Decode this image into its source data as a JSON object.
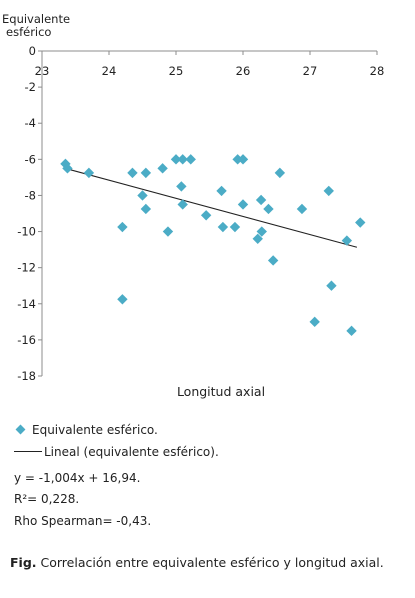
{
  "chart_data": {
    "type": "scatter",
    "ylabel_line1": "Equivalente",
    "ylabel_line2": "esférico",
    "xlabel": "Longitud axial",
    "xlim": [
      23,
      28
    ],
    "ylim": [
      -18,
      0
    ],
    "x_ticks": [
      23,
      24,
      25,
      26,
      27,
      28
    ],
    "y_ticks": [
      0,
      -2,
      -4,
      -6,
      -8,
      -10,
      -12,
      -14,
      -16,
      -18
    ],
    "x_tick_labels": [
      "23",
      "24",
      "25",
      "26",
      "27",
      "28"
    ],
    "y_tick_labels": [
      "0",
      "-2",
      "-4",
      "-6",
      "-8",
      "-10",
      "-12",
      "-14",
      "-16",
      "-18"
    ],
    "gridlines": false,
    "marker_color": "#4bacc6",
    "trendline_color": "#222222",
    "points": [
      {
        "x": 23.35,
        "y": -6.25
      },
      {
        "x": 23.38,
        "y": -6.5
      },
      {
        "x": 23.7,
        "y": -6.75
      },
      {
        "x": 24.2,
        "y": -9.75
      },
      {
        "x": 24.2,
        "y": -13.75
      },
      {
        "x": 24.35,
        "y": -6.75
      },
      {
        "x": 24.5,
        "y": -8.0
      },
      {
        "x": 24.55,
        "y": -6.75
      },
      {
        "x": 24.55,
        "y": -8.75
      },
      {
        "x": 24.8,
        "y": -6.5
      },
      {
        "x": 24.88,
        "y": -10.0
      },
      {
        "x": 25.0,
        "y": -6.0
      },
      {
        "x": 25.08,
        "y": -7.5
      },
      {
        "x": 25.1,
        "y": -6.0
      },
      {
        "x": 25.1,
        "y": -8.5
      },
      {
        "x": 25.22,
        "y": -6.0
      },
      {
        "x": 25.45,
        "y": -9.1
      },
      {
        "x": 25.68,
        "y": -7.75
      },
      {
        "x": 25.7,
        "y": -9.75
      },
      {
        "x": 25.88,
        "y": -9.75
      },
      {
        "x": 25.92,
        "y": -6.0
      },
      {
        "x": 26.0,
        "y": -6.0
      },
      {
        "x": 26.0,
        "y": -8.5
      },
      {
        "x": 26.22,
        "y": -10.4
      },
      {
        "x": 26.27,
        "y": -8.25
      },
      {
        "x": 26.28,
        "y": -10.0
      },
      {
        "x": 26.38,
        "y": -8.75
      },
      {
        "x": 26.45,
        "y": -11.6
      },
      {
        "x": 26.55,
        "y": -6.75
      },
      {
        "x": 26.88,
        "y": -8.75
      },
      {
        "x": 27.07,
        "y": -15.0
      },
      {
        "x": 27.28,
        "y": -7.75
      },
      {
        "x": 27.32,
        "y": -13.0
      },
      {
        "x": 27.55,
        "y": -10.5
      },
      {
        "x": 27.62,
        "y": -15.5
      },
      {
        "x": 27.75,
        "y": -9.5
      }
    ],
    "trendline": {
      "slope": -1.004,
      "intercept": 16.94,
      "x_start": 23.35,
      "x_end": 27.7
    }
  },
  "legend": {
    "series_label": "Equivalente esférico.",
    "trend_label": "Lineal (equivalente esférico)."
  },
  "stats": {
    "equation": "y = -1,004x + 16,94.",
    "r2": "R²= 0,228.",
    "rho": "Rho Spearman= -0,43."
  },
  "caption": {
    "prefix": "Fig.",
    "text": " Correlación entre equivalente esférico y longitud axial."
  }
}
